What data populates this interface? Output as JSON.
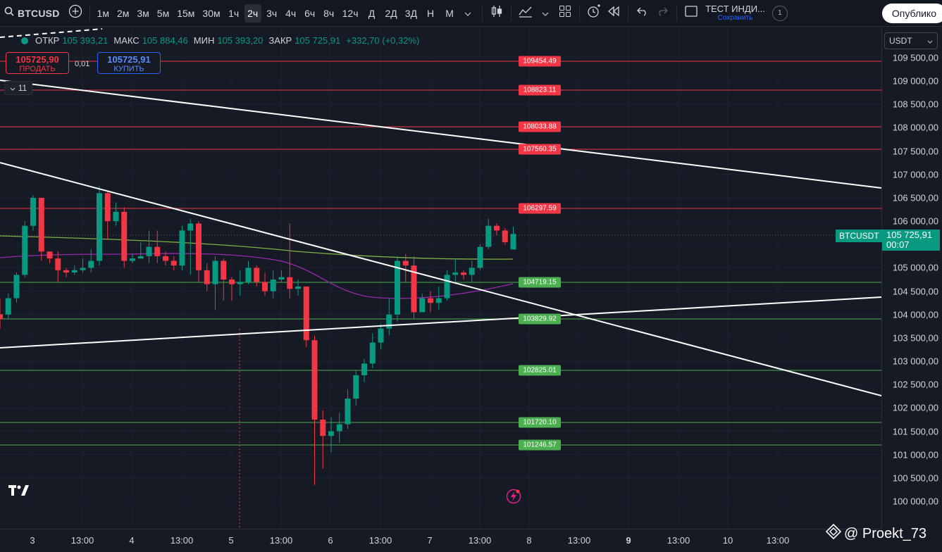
{
  "toolbar": {
    "symbol": "BTCUSD",
    "intervals": [
      "1м",
      "2м",
      "3м",
      "5м",
      "15м",
      "30м",
      "1ч",
      "2ч",
      "3ч",
      "4ч",
      "6ч",
      "8ч",
      "12ч",
      "Д",
      "2Д",
      "3Д",
      "Н",
      "М"
    ],
    "active_interval": "2ч",
    "indicator_template": "ТЕСТ ИНДИ...",
    "save_label": "Сохранить",
    "badge": "1",
    "publish_label": "Опублико"
  },
  "legend": {
    "open_label": "ОТКР",
    "open": "105 393,21",
    "high_label": "МАКС",
    "high": "105 884,46",
    "low_label": "МИН",
    "low": "105 393,20",
    "close_label": "ЗАКР",
    "close": "105 725,91",
    "change": "+332,70 (+0,32%)"
  },
  "trade": {
    "sell_price": "105725,90",
    "sell_label": "ПРОДАТЬ",
    "spread": "0,01",
    "buy_price": "105725,91",
    "buy_label": "КУПИТЬ"
  },
  "indicators_collapsed_count": "11",
  "price_scale": {
    "currency": "USDT",
    "ticks": [
      "109 500,00",
      "109 000,00",
      "108 500,00",
      "108 000,00",
      "107 500,00",
      "107 000,00",
      "106 500,00",
      "106 000,00",
      "105 000,00",
      "104 500,00",
      "104 000,00",
      "103 500,00",
      "103 000,00",
      "102 500,00",
      "102 000,00",
      "101 500,00",
      "101 000,00",
      "100 500,00",
      "100 000,00"
    ],
    "current_price": "105 725,91",
    "countdown": "00:07",
    "symbol_tag": "BTCUSDT"
  },
  "levels": {
    "resistance": [
      "109454.49",
      "108823.11",
      "108033.88",
      "107560.35",
      "106297.59"
    ],
    "support": [
      "104719.15",
      "103829.92",
      "102825.01",
      "101720.10",
      "101246.57"
    ]
  },
  "time_scale": {
    "ticks": [
      {
        "label": "3",
        "bold": false
      },
      {
        "label": "13:00",
        "bold": false
      },
      {
        "label": "4",
        "bold": false
      },
      {
        "label": "13:00",
        "bold": false
      },
      {
        "label": "5",
        "bold": false
      },
      {
        "label": "13:00",
        "bold": false
      },
      {
        "label": "6",
        "bold": false
      },
      {
        "label": "13:00",
        "bold": false
      },
      {
        "label": "7",
        "bold": false
      },
      {
        "label": "13:00",
        "bold": false
      },
      {
        "label": "8",
        "bold": false
      },
      {
        "label": "13:00",
        "bold": false
      },
      {
        "label": "9",
        "bold": true
      },
      {
        "label": "13:00",
        "bold": false
      },
      {
        "label": "10",
        "bold": false
      },
      {
        "label": "13:00",
        "bold": false
      }
    ]
  },
  "watermark": "@ Proekt_73",
  "colors": {
    "up": "#089981",
    "down": "#f23645",
    "background": "#161a25",
    "resistance": "#f23645",
    "support": "#4caf50",
    "ma_green": "#7cb342",
    "ma_purple": "#9c27b0"
  },
  "chart_data": {
    "type": "candlestick",
    "title": "BTCUSD",
    "interval": "2ч",
    "candles": [
      [
        104005,
        103900,
        104350,
        103700
      ],
      [
        104000,
        104350,
        104450,
        103900
      ],
      [
        104350,
        104850,
        104900,
        104250
      ],
      [
        104850,
        105900,
        106000,
        104800
      ],
      [
        105900,
        106500,
        106550,
        105800
      ],
      [
        106500,
        105350,
        106500,
        105150
      ],
      [
        105350,
        105200,
        105300,
        105100
      ],
      [
        105200,
        104950,
        105350,
        104700
      ],
      [
        104950,
        104900,
        105000,
        104800
      ],
      [
        104900,
        104950,
        105050,
        104850
      ],
      [
        104950,
        105000,
        105200,
        104900
      ],
      [
        105000,
        105150,
        105400,
        104900
      ],
      [
        105150,
        106600,
        106750,
        105050
      ],
      [
        106600,
        106000,
        106650,
        105600
      ],
      [
        106000,
        106200,
        106400,
        105900
      ],
      [
        106200,
        105150,
        106300,
        105000
      ],
      [
        105150,
        105200,
        105300,
        105100
      ],
      [
        105200,
        105250,
        105550,
        105200
      ],
      [
        105250,
        105450,
        105800,
        105100
      ],
      [
        105450,
        105250,
        105800,
        105100
      ],
      [
        105250,
        105150,
        105350,
        105050
      ],
      [
        105150,
        105050,
        105250,
        104950
      ],
      [
        105050,
        105800,
        105900,
        104950
      ],
      [
        105800,
        105950,
        106050,
        104850
      ],
      [
        105950,
        104950,
        106000,
        104700
      ],
      [
        104950,
        104650,
        105100,
        104500
      ],
      [
        104650,
        105150,
        105250,
        104100
      ],
      [
        105150,
        104750,
        105200,
        104300
      ],
      [
        104750,
        104650,
        104800,
        104300
      ],
      [
        104650,
        104700,
        104950,
        104400
      ],
      [
        104700,
        105000,
        105150,
        104650
      ],
      [
        105000,
        104700,
        105050,
        104600
      ],
      [
        104700,
        104500,
        104900,
        104400
      ],
      [
        104500,
        104750,
        104950,
        104350
      ],
      [
        104750,
        104800,
        104950,
        104700
      ],
      [
        104800,
        104550,
        105950,
        104350
      ],
      [
        104550,
        104600,
        104750,
        104400
      ],
      [
        104600,
        103450,
        104600,
        103300
      ],
      [
        103450,
        101750,
        103550,
        100350
      ],
      [
        101750,
        101400,
        101950,
        100700
      ],
      [
        101400,
        101500,
        101800,
        101050
      ],
      [
        101500,
        101650,
        101900,
        101250
      ],
      [
        101650,
        102200,
        102400,
        101550
      ],
      [
        102200,
        102700,
        102800,
        102050
      ],
      [
        102700,
        102950,
        103050,
        102550
      ],
      [
        102950,
        103400,
        103600,
        102850
      ],
      [
        103400,
        103700,
        103800,
        103250
      ],
      [
        103700,
        104000,
        104350,
        103550
      ],
      [
        104000,
        105150,
        105250,
        103850
      ],
      [
        105150,
        105050,
        105300,
        104700
      ],
      [
        105050,
        104050,
        105250,
        103900
      ],
      [
        104050,
        104350,
        104450,
        104050
      ],
      [
        104350,
        104250,
        104500,
        104050
      ],
      [
        104250,
        104350,
        104600,
        104100
      ],
      [
        104350,
        104850,
        104950,
        104300
      ],
      [
        104850,
        104900,
        105200,
        104700
      ],
      [
        104900,
        104850,
        104950,
        104750
      ],
      [
        104850,
        105000,
        105150,
        104700
      ],
      [
        105000,
        105450,
        105500,
        104950
      ],
      [
        105450,
        105900,
        106050,
        105400
      ],
      [
        105900,
        105800,
        105950,
        105700
      ],
      [
        105800,
        105550,
        105850,
        105500
      ],
      [
        105393,
        105726,
        105884,
        105393
      ]
    ],
    "moving_average_green": "slow MA, ~105 850 declining to ~105 200",
    "moving_average_purple": "fast MA",
    "ylim": [
      99800,
      109900
    ]
  }
}
